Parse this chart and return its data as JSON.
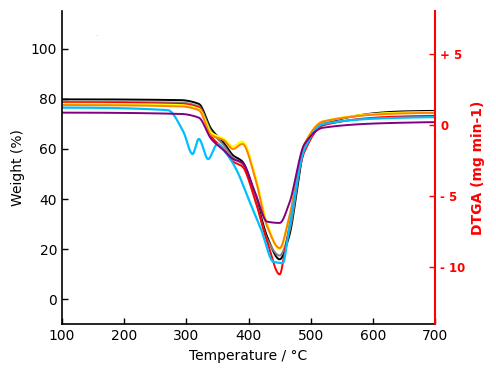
{
  "xlabel": "Temperature / °C",
  "ylabel_left": "Weight (%)",
  "ylabel_right": "DTGA (mg min-1)",
  "xlim": [
    100,
    700
  ],
  "ylim_left": [
    -10,
    115
  ],
  "background_color": "#ffffff",
  "curves": [
    {
      "color": "#000000",
      "lw": 1.4
    },
    {
      "color": "#808080",
      "lw": 1.4
    },
    {
      "color": "#ff0000",
      "lw": 1.4
    },
    {
      "color": "#ffff00",
      "lw": 1.6
    },
    {
      "color": "#ff8000",
      "lw": 1.4
    },
    {
      "color": "#00bfff",
      "lw": 1.6
    },
    {
      "color": "#800080",
      "lw": 1.4
    }
  ]
}
